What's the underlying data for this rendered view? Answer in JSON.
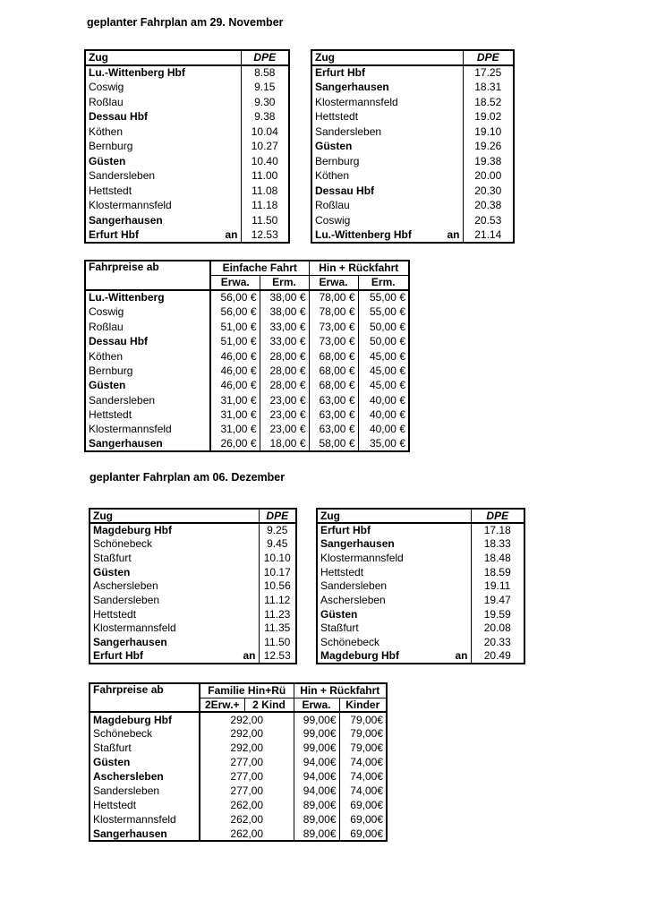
{
  "sections": [
    {
      "title": "geplanter Fahrplan am 29. November",
      "schedules": [
        {
          "header": [
            "Zug",
            "DPE"
          ],
          "rows": [
            {
              "station": "Lu.-Wittenberg Hbf",
              "time": "8.58",
              "bold": true
            },
            {
              "station": "Coswig",
              "time": "9.15"
            },
            {
              "station": "Roßlau",
              "time": "9.30"
            },
            {
              "station": "Dessau Hbf",
              "time": "9.38",
              "bold": true
            },
            {
              "station": "Köthen",
              "time": "10.04"
            },
            {
              "station": "Bernburg",
              "time": "10.27"
            },
            {
              "station": "Güsten",
              "time": "10.40",
              "bold": true
            },
            {
              "station": "Sandersleben",
              "time": "11.00"
            },
            {
              "station": "Hettstedt",
              "time": "11.08"
            },
            {
              "station": "Klostermannsfeld",
              "time": "11.18"
            },
            {
              "station": "Sangerhausen",
              "time": "11.50",
              "bold": true
            },
            {
              "station": "Erfurt Hbf",
              "an": "an",
              "time": "12.53",
              "bold": true
            }
          ]
        },
        {
          "header": [
            "Zug",
            "DPE"
          ],
          "rows": [
            {
              "station": "Erfurt Hbf",
              "time": "17.25",
              "bold": true
            },
            {
              "station": "Sangerhausen",
              "time": "18.31",
              "bold": true
            },
            {
              "station": "Klostermannsfeld",
              "time": "18.52"
            },
            {
              "station": "Hettstedt",
              "time": "19.02"
            },
            {
              "station": "Sandersleben",
              "time": "19.10"
            },
            {
              "station": "Güsten",
              "time": "19.26",
              "bold": true
            },
            {
              "station": "Bernburg",
              "time": "19.38"
            },
            {
              "station": "Köthen",
              "time": "20.00"
            },
            {
              "station": "Dessau Hbf",
              "time": "20.30",
              "bold": true
            },
            {
              "station": "Roßlau",
              "time": "20.38"
            },
            {
              "station": "Coswig",
              "time": "20.53"
            },
            {
              "station": "Lu.-Wittenberg Hbf",
              "an": "an",
              "time": "21.14",
              "bold": true
            }
          ]
        }
      ],
      "fares": {
        "header": [
          "Fahrpreise ab",
          "Einfache Fahrt",
          "Hin + Rückfahrt"
        ],
        "subheader": [
          "Erwa.",
          "Erm.",
          "Erwa.",
          "Erm."
        ],
        "rows": [
          {
            "station": "Lu.-Wittenberg",
            "prices": [
              "56,00 €",
              "38,00 €",
              "78,00 €",
              "55,00 €"
            ],
            "bold": true
          },
          {
            "station": "Coswig",
            "prices": [
              "56,00 €",
              "38,00 €",
              "78,00 €",
              "55,00 €"
            ]
          },
          {
            "station": "Roßlau",
            "prices": [
              "51,00 €",
              "33,00 €",
              "73,00 €",
              "50,00 €"
            ]
          },
          {
            "station": "Dessau Hbf",
            "prices": [
              "51,00 €",
              "33,00 €",
              "73,00 €",
              "50,00 €"
            ],
            "bold": true
          },
          {
            "station": "Köthen",
            "prices": [
              "46,00 €",
              "28,00 €",
              "68,00 €",
              "45,00 €"
            ]
          },
          {
            "station": "Bernburg",
            "prices": [
              "46,00 €",
              "28,00 €",
              "68,00 €",
              "45,00 €"
            ]
          },
          {
            "station": "Güsten",
            "prices": [
              "46,00 €",
              "28,00 €",
              "68,00 €",
              "45,00 €"
            ],
            "bold": true
          },
          {
            "station": "Sandersleben",
            "prices": [
              "31,00 €",
              "23,00 €",
              "63,00 €",
              "40,00 €"
            ]
          },
          {
            "station": "Hettstedt",
            "prices": [
              "31,00 €",
              "23,00 €",
              "63,00 €",
              "40,00 €"
            ]
          },
          {
            "station": "Klostermannsfeld",
            "prices": [
              "31,00 €",
              "23,00 €",
              "63,00 €",
              "40,00 €"
            ]
          },
          {
            "station": "Sangerhausen",
            "prices": [
              "26,00 €",
              "18,00 €",
              "58,00 €",
              "35,00 €"
            ],
            "bold": true
          }
        ]
      }
    },
    {
      "title": "geplanter Fahrplan am 06. Dezember",
      "schedules": [
        {
          "header": [
            "Zug",
            "DPE"
          ],
          "rows": [
            {
              "station": "Magdeburg Hbf",
              "time": "9.25",
              "bold": true
            },
            {
              "station": "Schönebeck",
              "time": "9.45"
            },
            {
              "station": "Staßfurt",
              "time": "10.10"
            },
            {
              "station": "Güsten",
              "time": "10.17",
              "bold": true
            },
            {
              "station": "Aschersleben",
              "time": "10.56"
            },
            {
              "station": "Sandersleben",
              "time": "11.12"
            },
            {
              "station": "Hettstedt",
              "time": "11.23"
            },
            {
              "station": "Klostermannsfeld",
              "time": "11.35"
            },
            {
              "station": "Sangerhausen",
              "time": "11.50",
              "bold": true
            },
            {
              "station": "Erfurt Hbf",
              "an": "an",
              "time": "12.53",
              "bold": true
            }
          ]
        },
        {
          "header": [
            "Zug",
            "DPE"
          ],
          "rows": [
            {
              "station": "Erfurt Hbf",
              "time": "17.18",
              "bold": true
            },
            {
              "station": "Sangerhausen",
              "time": "18.33",
              "bold": true
            },
            {
              "station": "Klostermannsfeld",
              "time": "18.48"
            },
            {
              "station": "Hettstedt",
              "time": "18.59"
            },
            {
              "station": "Sandersleben",
              "time": "19.11"
            },
            {
              "station": "Aschersleben",
              "time": "19.47"
            },
            {
              "station": "Güsten",
              "time": "19.59",
              "bold": true
            },
            {
              "station": "Staßfurt",
              "time": "20.08"
            },
            {
              "station": "Schönebeck",
              "time": "20.33"
            },
            {
              "station": "Magdeburg Hbf",
              "an": "an",
              "time": "20.49",
              "bold": true
            }
          ]
        }
      ],
      "fares": {
        "header": [
          "Fahrpreise ab",
          "Familie Hin+Rü",
          "Hin + Rückfahrt"
        ],
        "subheader": [
          "2Erw.+",
          "2 Kind",
          "Erwa.",
          "Kinder"
        ],
        "rows": [
          {
            "station": "Magdeburg Hbf",
            "prices": [
              "292,00",
              "99,00€",
              "79,00€"
            ],
            "bold": true
          },
          {
            "station": "Schönebeck",
            "prices": [
              "292,00",
              "99,00€",
              "79,00€"
            ]
          },
          {
            "station": "Staßfurt",
            "prices": [
              "292,00",
              "99,00€",
              "79,00€"
            ]
          },
          {
            "station": "Güsten",
            "prices": [
              "277,00",
              "94,00€",
              "74,00€"
            ],
            "bold": true
          },
          {
            "station": "Aschersleben",
            "prices": [
              "277,00",
              "94,00€",
              "74,00€"
            ],
            "bold": true
          },
          {
            "station": "Sandersleben",
            "prices": [
              "277,00",
              "94,00€",
              "74,00€"
            ]
          },
          {
            "station": "Hettstedt",
            "prices": [
              "262,00",
              "89,00€",
              "69,00€"
            ]
          },
          {
            "station": "Klostermannsfeld",
            "prices": [
              "262,00",
              "89,00€",
              "69,00€"
            ]
          },
          {
            "station": "Sangerhausen",
            "prices": [
              "262,00",
              "89,00€",
              "69,00€"
            ],
            "bold": true
          }
        ]
      }
    }
  ]
}
